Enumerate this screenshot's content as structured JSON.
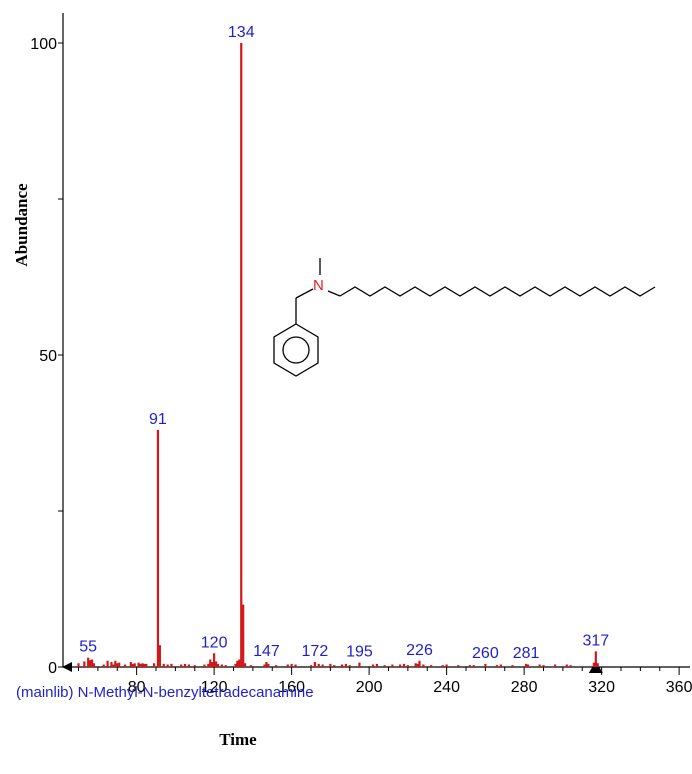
{
  "chart_data": {
    "type": "bar",
    "xlabel": "Time",
    "ylabel": "Abundance",
    "compound": "(mainlib) N-Methyl-N-benzyltetradecanamine",
    "xlim": [
      42,
      362
    ],
    "ylim": [
      0,
      100
    ],
    "x_ticks": [
      80,
      120,
      160,
      200,
      240,
      280,
      320,
      360
    ],
    "y_ticks": [
      0,
      50,
      100
    ],
    "grid": false,
    "legend": "none",
    "bar_color": "#d01818",
    "label_color": "#1f1fd0",
    "major_peaks": [
      {
        "mz": 91,
        "abundance": 38
      },
      {
        "mz": 134,
        "abundance": 100
      },
      {
        "mz": 135,
        "abundance": 10
      }
    ],
    "labeled_peaks": [
      {
        "mz": 55,
        "label": "55",
        "abundance": 1.5
      },
      {
        "mz": 91,
        "label": "91",
        "abundance": 38
      },
      {
        "mz": 120,
        "label": "120",
        "abundance": 2.2
      },
      {
        "mz": 134,
        "label": "134",
        "abundance": 100
      },
      {
        "mz": 147,
        "label": "147",
        "abundance": 0.8
      },
      {
        "mz": 172,
        "label": "172",
        "abundance": 0.8
      },
      {
        "mz": 195,
        "label": "195",
        "abundance": 0.7
      },
      {
        "mz": 226,
        "label": "226",
        "abundance": 1.0
      },
      {
        "mz": 260,
        "label": "260",
        "abundance": 0.5
      },
      {
        "mz": 281,
        "label": "281",
        "abundance": 0.5
      },
      {
        "mz": 317,
        "label": "317",
        "abundance": 2.5
      }
    ],
    "minor_peaks": [
      {
        "mz": 50,
        "abundance": 0.6
      },
      {
        "mz": 53,
        "abundance": 0.9
      },
      {
        "mz": 56,
        "abundance": 1.1
      },
      {
        "mz": 57,
        "abundance": 1.2
      },
      {
        "mz": 58,
        "abundance": 0.6
      },
      {
        "mz": 63,
        "abundance": 0.4
      },
      {
        "mz": 65,
        "abundance": 1.0
      },
      {
        "mz": 67,
        "abundance": 0.8
      },
      {
        "mz": 68,
        "abundance": 0.4
      },
      {
        "mz": 69,
        "abundance": 1.0
      },
      {
        "mz": 70,
        "abundance": 0.6
      },
      {
        "mz": 71,
        "abundance": 0.7
      },
      {
        "mz": 74,
        "abundance": 0.4
      },
      {
        "mz": 77,
        "abundance": 0.8
      },
      {
        "mz": 78,
        "abundance": 0.5
      },
      {
        "mz": 79,
        "abundance": 0.6
      },
      {
        "mz": 81,
        "abundance": 0.7
      },
      {
        "mz": 82,
        "abundance": 0.5
      },
      {
        "mz": 83,
        "abundance": 0.6
      },
      {
        "mz": 84,
        "abundance": 0.5
      },
      {
        "mz": 85,
        "abundance": 0.5
      },
      {
        "mz": 89,
        "abundance": 0.6
      },
      {
        "mz": 92,
        "abundance": 3.5
      },
      {
        "mz": 94,
        "abundance": 0.5
      },
      {
        "mz": 96,
        "abundance": 0.4
      },
      {
        "mz": 98,
        "abundance": 0.5
      },
      {
        "mz": 103,
        "abundance": 0.4
      },
      {
        "mz": 105,
        "abundance": 0.5
      },
      {
        "mz": 107,
        "abundance": 0.4
      },
      {
        "mz": 110,
        "abundance": 0.3
      },
      {
        "mz": 115,
        "abundance": 0.4
      },
      {
        "mz": 117,
        "abundance": 0.5
      },
      {
        "mz": 118,
        "abundance": 1.2
      },
      {
        "mz": 119,
        "abundance": 0.8
      },
      {
        "mz": 121,
        "abundance": 0.9
      },
      {
        "mz": 122,
        "abundance": 0.5
      },
      {
        "mz": 124,
        "abundance": 0.4
      },
      {
        "mz": 126,
        "abundance": 0.3
      },
      {
        "mz": 131,
        "abundance": 0.5
      },
      {
        "mz": 132,
        "abundance": 1.0
      },
      {
        "mz": 133,
        "abundance": 1.2
      },
      {
        "mz": 136,
        "abundance": 0.6
      },
      {
        "mz": 139,
        "abundance": 0.3
      },
      {
        "mz": 146,
        "abundance": 0.4
      },
      {
        "mz": 148,
        "abundance": 0.5
      },
      {
        "mz": 152,
        "abundance": 0.3
      },
      {
        "mz": 158,
        "abundance": 0.4
      },
      {
        "mz": 160,
        "abundance": 0.5
      },
      {
        "mz": 162,
        "abundance": 0.4
      },
      {
        "mz": 170,
        "abundance": 0.3
      },
      {
        "mz": 174,
        "abundance": 0.5
      },
      {
        "mz": 176,
        "abundance": 0.4
      },
      {
        "mz": 180,
        "abundance": 0.5
      },
      {
        "mz": 182,
        "abundance": 0.3
      },
      {
        "mz": 186,
        "abundance": 0.4
      },
      {
        "mz": 188,
        "abundance": 0.5
      },
      {
        "mz": 190,
        "abundance": 0.3
      },
      {
        "mz": 202,
        "abundance": 0.4
      },
      {
        "mz": 204,
        "abundance": 0.5
      },
      {
        "mz": 208,
        "abundance": 0.3
      },
      {
        "mz": 212,
        "abundance": 0.4
      },
      {
        "mz": 216,
        "abundance": 0.4
      },
      {
        "mz": 218,
        "abundance": 0.5
      },
      {
        "mz": 220,
        "abundance": 0.3
      },
      {
        "mz": 224,
        "abundance": 0.6
      },
      {
        "mz": 225,
        "abundance": 0.5
      },
      {
        "mz": 228,
        "abundance": 0.4
      },
      {
        "mz": 232,
        "abundance": 0.3
      },
      {
        "mz": 238,
        "abundance": 0.3
      },
      {
        "mz": 240,
        "abundance": 0.4
      },
      {
        "mz": 246,
        "abundance": 0.3
      },
      {
        "mz": 252,
        "abundance": 0.3
      },
      {
        "mz": 254,
        "abundance": 0.3
      },
      {
        "mz": 266,
        "abundance": 0.3
      },
      {
        "mz": 268,
        "abundance": 0.4
      },
      {
        "mz": 274,
        "abundance": 0.3
      },
      {
        "mz": 282,
        "abundance": 0.4
      },
      {
        "mz": 288,
        "abundance": 0.4
      },
      {
        "mz": 290,
        "abundance": 0.3
      },
      {
        "mz": 296,
        "abundance": 0.4
      },
      {
        "mz": 302,
        "abundance": 0.4
      },
      {
        "mz": 304,
        "abundance": 0.3
      },
      {
        "mz": 316,
        "abundance": 0.7
      },
      {
        "mz": 318,
        "abundance": 0.6
      }
    ],
    "structure": {
      "atom_label": "N"
    },
    "parent_marker_mz": 317
  }
}
